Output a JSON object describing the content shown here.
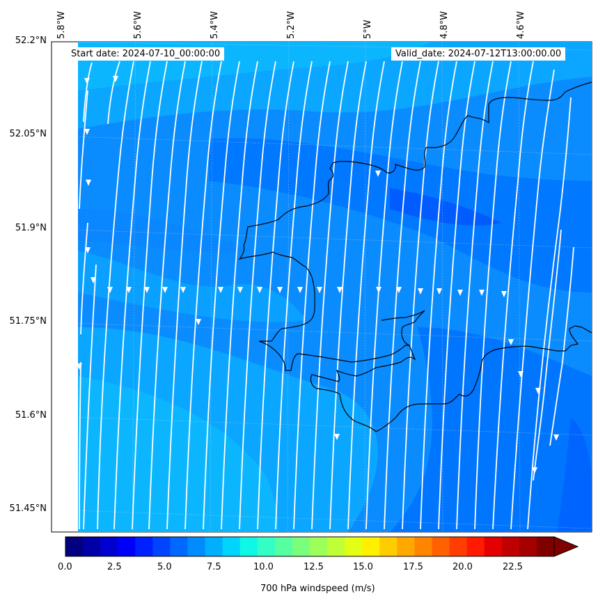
{
  "header": {
    "start_date": "Start date: 2024-07-10_00:00:00",
    "valid_date": "Valid_date: 2024-07-12T13:00:00.00"
  },
  "longitude_labels": [
    "5.8°W",
    "5.6°W",
    "5.4°W",
    "5.2°W",
    "5°W",
    "4.8°W",
    "4.6°W"
  ],
  "latitude_labels": [
    "52.2°N",
    "52.05°N",
    "51.9°N",
    "51.75°N",
    "51.6°N",
    "51.45°N"
  ],
  "colorbar": {
    "label": "700 hPa windspeed (m/s)",
    "ticks": [
      "0.0",
      "2.5",
      "5.0",
      "7.5",
      "10.0",
      "12.5",
      "15.0",
      "17.5",
      "20.0",
      "22.5"
    ],
    "colors": [
      "#000080",
      "#0000a8",
      "#0000d0",
      "#0000f8",
      "#0020ff",
      "#0044ff",
      "#0068ff",
      "#008cff",
      "#00b0ff",
      "#00d4ff",
      "#0ff8e6",
      "#33ffc4",
      "#56ffa0",
      "#7aff7d",
      "#9dff5a",
      "#c0ff36",
      "#e3ff13",
      "#fff000",
      "#ffcc00",
      "#ffa800",
      "#ff8500",
      "#ff6100",
      "#ff3d00",
      "#ff1a00",
      "#e40000",
      "#c00000",
      "#a40000",
      "#800000"
    ]
  },
  "map": {
    "field_colors": {
      "light": "#0cb0ff",
      "mid": "#0a8cff",
      "deep": "#0070ff",
      "darkest": "#0050ff"
    },
    "streamline_color": "#ffffff",
    "coast_color": "#000000"
  }
}
